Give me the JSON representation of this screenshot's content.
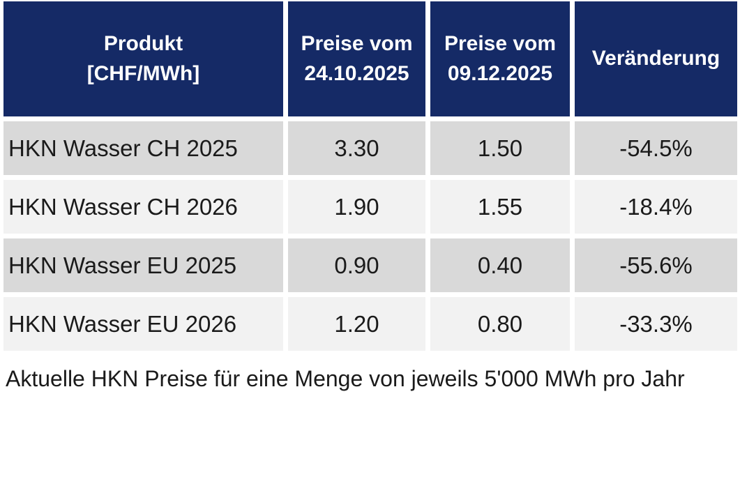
{
  "colors": {
    "header_background": "#152a66",
    "header_text": "#ffffff",
    "row_dark": "#d9d9d9",
    "row_light": "#f2f2f2",
    "body_text": "#1a1a1a",
    "page_background": "#ffffff"
  },
  "table": {
    "columns": [
      {
        "line1": "Produkt",
        "line2": "[CHF/MWh]"
      },
      {
        "line1": "Preise vom",
        "line2": "24.10.2025"
      },
      {
        "line1": "Preise vom",
        "line2": "09.12.2025"
      },
      {
        "line1": "Veränderung",
        "line2": ""
      }
    ],
    "rows": [
      {
        "product": "HKN Wasser CH 2025",
        "price_2410": "3.30",
        "price_0912": "1.50",
        "change": "-54.5%"
      },
      {
        "product": "HKN Wasser CH 2026",
        "price_2410": "1.90",
        "price_0912": "1.55",
        "change": "-18.4%"
      },
      {
        "product": "HKN Wasser EU 2025",
        "price_2410": "0.90",
        "price_0912": "0.40",
        "change": "-55.6%"
      },
      {
        "product": "HKN Wasser EU 2026",
        "price_2410": "1.20",
        "price_0912": "0.80",
        "change": "-33.3%"
      }
    ]
  },
  "caption": "Aktuelle HKN Preise für eine Menge von jeweils 5'000 MWh pro Jahr",
  "chart_data": {
    "type": "table",
    "title": "Produkt [CHF/MWh]",
    "columns": [
      "Produkt [CHF/MWh]",
      "Preise vom 24.10.2025",
      "Preise vom 09.12.2025",
      "Veränderung"
    ],
    "rows": [
      [
        "HKN Wasser CH 2025",
        3.3,
        1.5,
        "-54.5%"
      ],
      [
        "HKN Wasser CH 2026",
        1.9,
        1.55,
        "-18.4%"
      ],
      [
        "HKN Wasser EU 2025",
        0.9,
        0.4,
        "-55.6%"
      ],
      [
        "HKN Wasser EU 2026",
        1.2,
        0.8,
        "-33.3%"
      ]
    ],
    "caption": "Aktuelle HKN Preise für eine Menge von jeweils 5'000 MWh pro Jahr",
    "units": "CHF/MWh",
    "quantity_per_product": "5'000 MWh pro Jahr"
  }
}
